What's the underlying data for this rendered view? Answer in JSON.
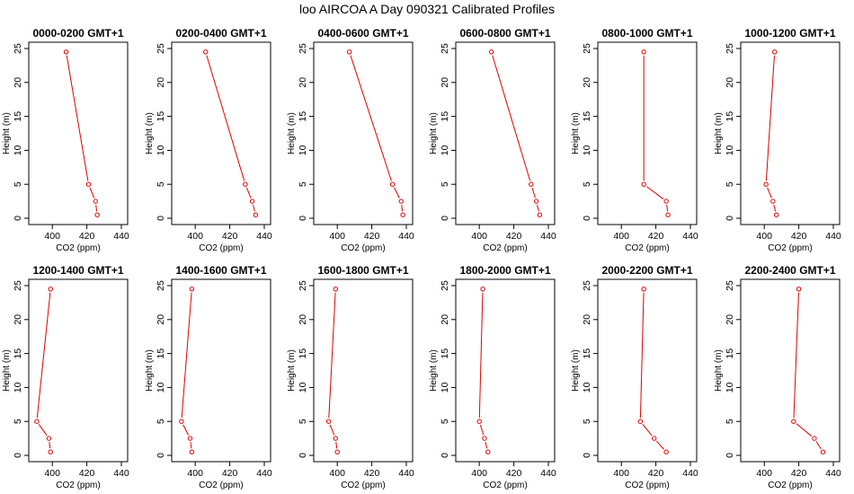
{
  "figure": {
    "title": "loo AIRCOA A  Day 090321  Calibrated Profiles",
    "colors": {
      "series": "#e00000",
      "axis": "#000000",
      "background": "#ffffff"
    }
  },
  "chart_data": [
    {
      "type": "line",
      "title": "0000-0200 GMT+1",
      "xlabel": "CO2 (ppm)",
      "ylabel": "Height (m)",
      "xlim": [
        390,
        440
      ],
      "ylim": [
        0,
        25
      ],
      "xticks": [
        400,
        420,
        440
      ],
      "yticks": [
        0,
        5,
        10,
        15,
        20,
        25
      ],
      "series": [
        {
          "x": [
            426,
            425,
            421,
            408
          ],
          "y": [
            0.5,
            2.5,
            5,
            24.5
          ]
        }
      ]
    },
    {
      "type": "line",
      "title": "0200-0400 GMT+1",
      "xlabel": "CO2 (ppm)",
      "ylabel": "Height (m)",
      "xlim": [
        390,
        440
      ],
      "ylim": [
        0,
        25
      ],
      "xticks": [
        400,
        420,
        440
      ],
      "yticks": [
        0,
        5,
        10,
        15,
        20,
        25
      ],
      "series": [
        {
          "x": [
            435,
            433,
            429,
            406
          ],
          "y": [
            0.5,
            2.5,
            5,
            24.5
          ]
        }
      ]
    },
    {
      "type": "line",
      "title": "0400-0600 GMT+1",
      "xlabel": "CO2 (ppm)",
      "ylabel": "Height (m)",
      "xlim": [
        390,
        440
      ],
      "ylim": [
        0,
        25
      ],
      "xticks": [
        400,
        420,
        440
      ],
      "yticks": [
        0,
        5,
        10,
        15,
        20,
        25
      ],
      "series": [
        {
          "x": [
            438,
            437,
            432,
            407
          ],
          "y": [
            0.5,
            2.5,
            5,
            24.5
          ]
        }
      ]
    },
    {
      "type": "line",
      "title": "0600-0800 GMT+1",
      "xlabel": "CO2 (ppm)",
      "ylabel": "Height (m)",
      "xlim": [
        390,
        440
      ],
      "ylim": [
        0,
        25
      ],
      "xticks": [
        400,
        420,
        440
      ],
      "yticks": [
        0,
        5,
        10,
        15,
        20,
        25
      ],
      "series": [
        {
          "x": [
            435,
            433,
            430,
            407
          ],
          "y": [
            0.5,
            2.5,
            5,
            24.5
          ]
        }
      ]
    },
    {
      "type": "line",
      "title": "0800-1000 GMT+1",
      "xlabel": "CO2 (ppm)",
      "ylabel": "Height (m)",
      "xlim": [
        390,
        440
      ],
      "ylim": [
        0,
        25
      ],
      "xticks": [
        400,
        420,
        440
      ],
      "yticks": [
        0,
        5,
        10,
        15,
        20,
        25
      ],
      "series": [
        {
          "x": [
            427,
            426,
            413,
            413
          ],
          "y": [
            0.5,
            2.5,
            5,
            24.5
          ]
        }
      ]
    },
    {
      "type": "line",
      "title": "1000-1200 GMT+1",
      "xlabel": "CO2 (ppm)",
      "ylabel": "Height (m)",
      "xlim": [
        390,
        440
      ],
      "ylim": [
        0,
        25
      ],
      "xticks": [
        400,
        420,
        440
      ],
      "yticks": [
        0,
        5,
        10,
        15,
        20,
        25
      ],
      "series": [
        {
          "x": [
            407,
            405,
            401,
            406
          ],
          "y": [
            0.5,
            2.5,
            5,
            24.5
          ]
        }
      ]
    },
    {
      "type": "line",
      "title": "1200-1400 GMT+1",
      "xlabel": "CO2 (ppm)",
      "ylabel": "Height (m)",
      "xlim": [
        390,
        440
      ],
      "ylim": [
        0,
        25
      ],
      "xticks": [
        400,
        420,
        440
      ],
      "yticks": [
        0,
        5,
        10,
        15,
        20,
        25
      ],
      "series": [
        {
          "x": [
            399,
            398,
            391,
            399
          ],
          "y": [
            0.5,
            2.5,
            5,
            24.5
          ]
        }
      ]
    },
    {
      "type": "line",
      "title": "1400-1600 GMT+1",
      "xlabel": "CO2 (ppm)",
      "ylabel": "Height (m)",
      "xlim": [
        390,
        440
      ],
      "ylim": [
        0,
        25
      ],
      "xticks": [
        400,
        420,
        440
      ],
      "yticks": [
        0,
        5,
        10,
        15,
        20,
        25
      ],
      "series": [
        {
          "x": [
            398,
            397,
            392,
            398
          ],
          "y": [
            0.5,
            2.5,
            5,
            24.5
          ]
        }
      ]
    },
    {
      "type": "line",
      "title": "1600-1800 GMT+1",
      "xlabel": "CO2 (ppm)",
      "ylabel": "Height (m)",
      "xlim": [
        390,
        440
      ],
      "ylim": [
        0,
        25
      ],
      "xticks": [
        400,
        420,
        440
      ],
      "yticks": [
        0,
        5,
        10,
        15,
        20,
        25
      ],
      "series": [
        {
          "x": [
            400,
            399,
            395,
            399
          ],
          "y": [
            0.5,
            2.5,
            5,
            24.5
          ]
        }
      ]
    },
    {
      "type": "line",
      "title": "1800-2000 GMT+1",
      "xlabel": "CO2 (ppm)",
      "ylabel": "Height (m)",
      "xlim": [
        390,
        440
      ],
      "ylim": [
        0,
        25
      ],
      "xticks": [
        400,
        420,
        440
      ],
      "yticks": [
        0,
        5,
        10,
        15,
        20,
        25
      ],
      "series": [
        {
          "x": [
            405,
            403,
            400,
            402
          ],
          "y": [
            0.5,
            2.5,
            5,
            24.5
          ]
        }
      ]
    },
    {
      "type": "line",
      "title": "2000-2200 GMT+1",
      "xlabel": "CO2 (ppm)",
      "ylabel": "Height (m)",
      "xlim": [
        390,
        440
      ],
      "ylim": [
        0,
        25
      ],
      "xticks": [
        400,
        420,
        440
      ],
      "yticks": [
        0,
        5,
        10,
        15,
        20,
        25
      ],
      "series": [
        {
          "x": [
            426,
            419,
            411,
            413
          ],
          "y": [
            0.5,
            2.5,
            5,
            24.5
          ]
        }
      ]
    },
    {
      "type": "line",
      "title": "2200-2400 GMT+1",
      "xlabel": "CO2 (ppm)",
      "ylabel": "Height (m)",
      "xlim": [
        390,
        440
      ],
      "ylim": [
        0,
        25
      ],
      "xticks": [
        400,
        420,
        440
      ],
      "yticks": [
        0,
        5,
        10,
        15,
        20,
        25
      ],
      "series": [
        {
          "x": [
            434,
            429,
            417,
            420
          ],
          "y": [
            0.5,
            2.5,
            5,
            24.5
          ]
        }
      ]
    }
  ]
}
